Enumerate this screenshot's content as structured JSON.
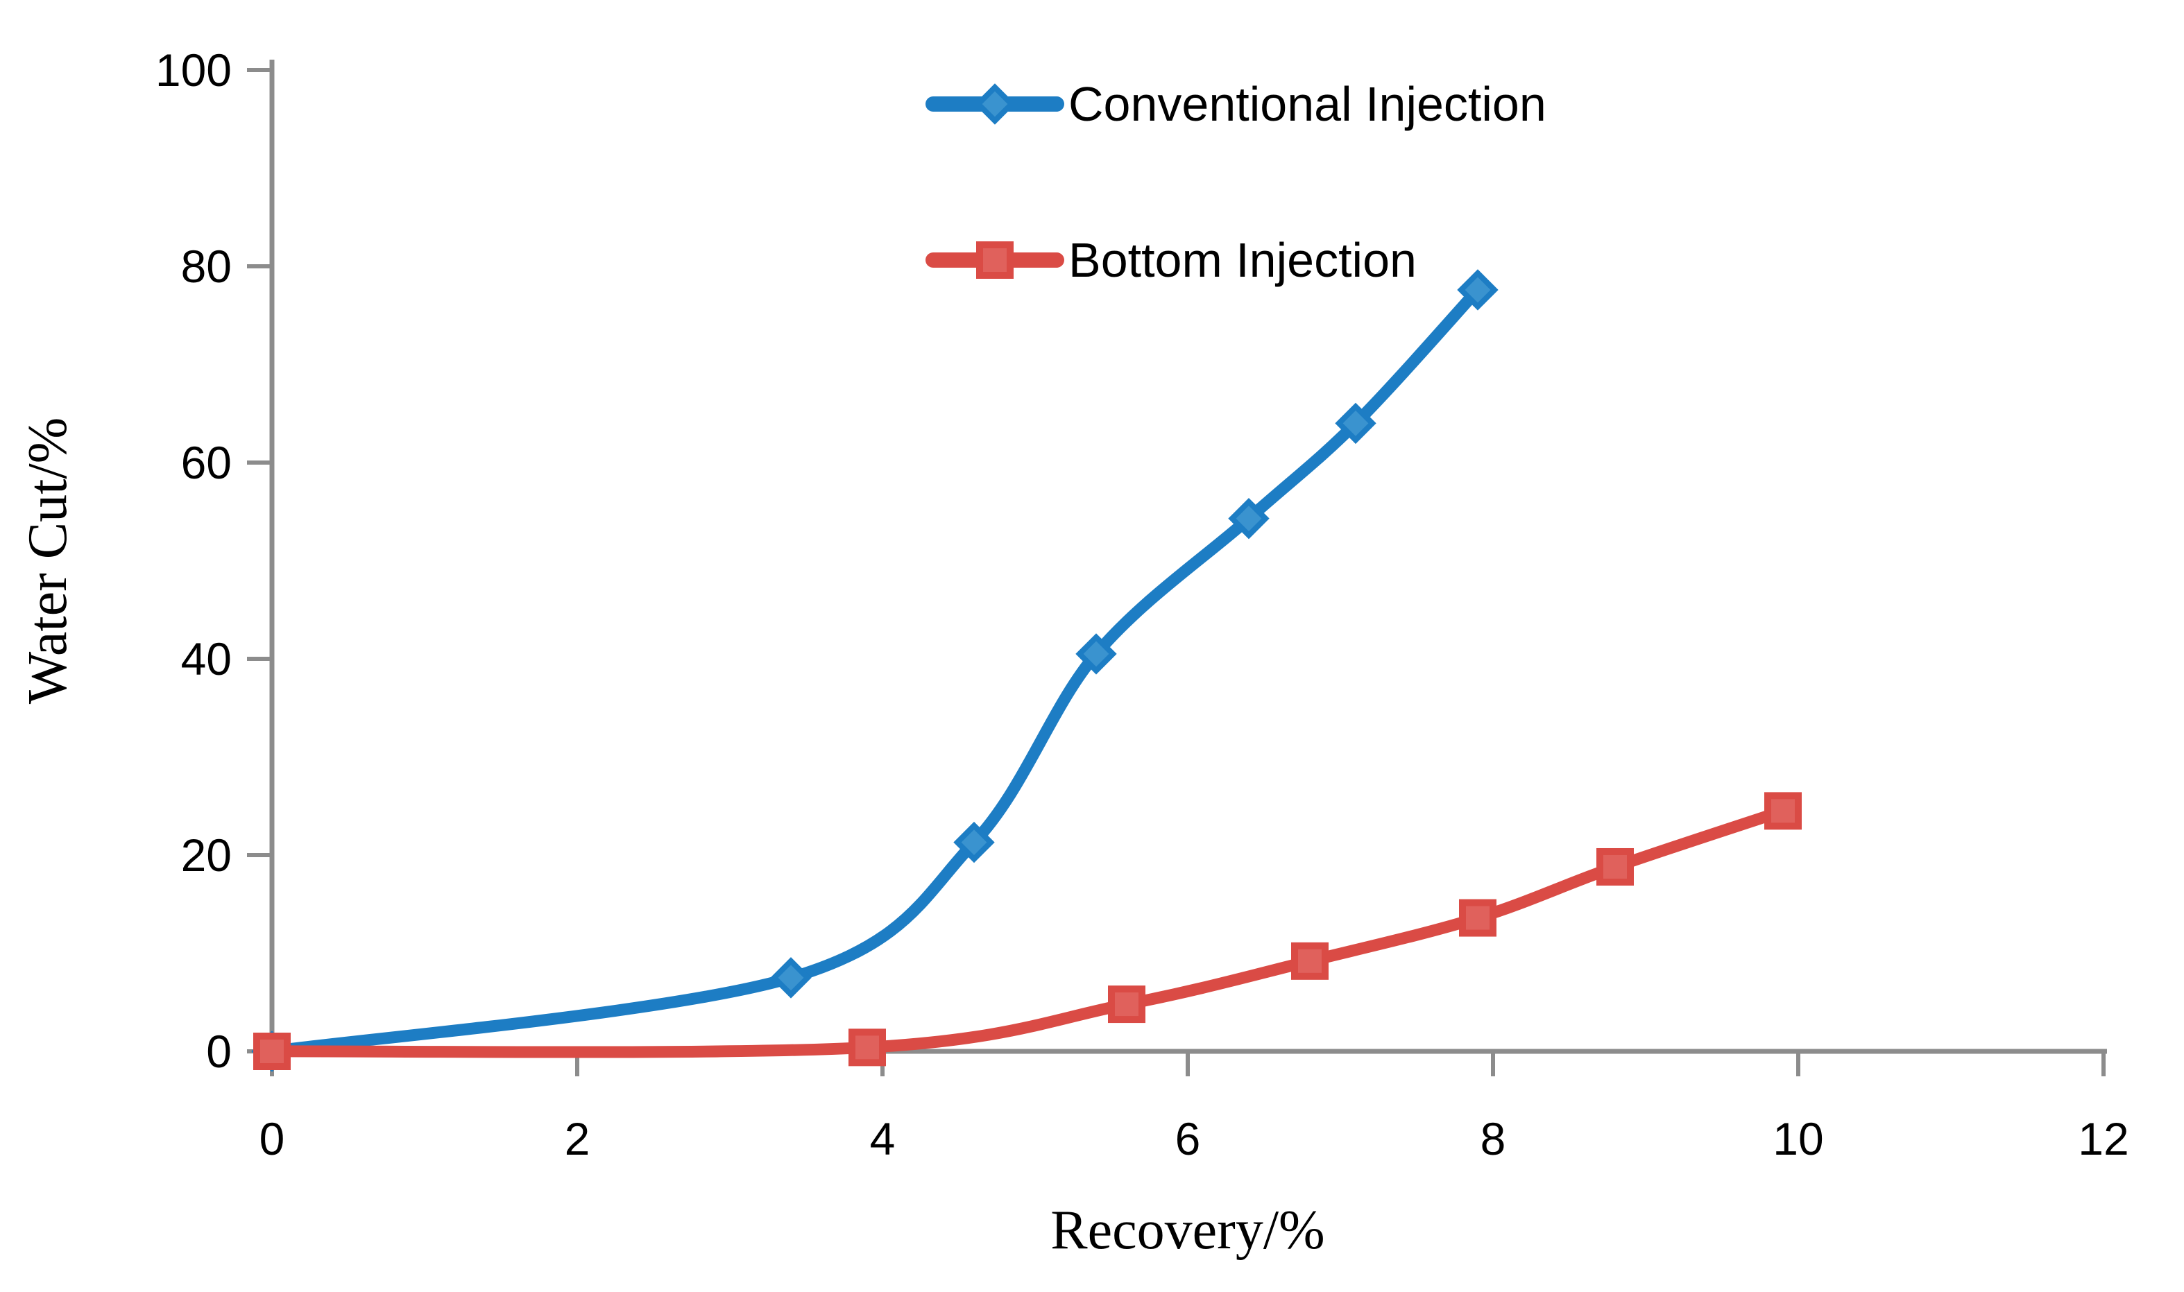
{
  "chart_data": {
    "type": "line",
    "title": "",
    "xlabel": "Recovery/%",
    "ylabel": "Water Cut/%",
    "xlim": [
      0,
      12
    ],
    "ylim": [
      0,
      100
    ],
    "xticks": [
      0,
      2,
      4,
      6,
      8,
      10,
      12
    ],
    "yticks": [
      0,
      20,
      40,
      60,
      80,
      100
    ],
    "grid": false,
    "axis_color": "#8c8c8c",
    "tick_label_color": "#000000",
    "legend": {
      "position": "top-center",
      "entries": [
        "Conventional Injection",
        "Bottom Injection"
      ]
    },
    "series": [
      {
        "name": "Conventional Injection",
        "color": "#1d7dc4",
        "marker": "diamond",
        "marker_inner": "#3a93cf",
        "smooth": true,
        "x": [
          0,
          3.4,
          4.6,
          5.4,
          6.4,
          7.1,
          7.9
        ],
        "y": [
          0,
          7.5,
          21.3,
          40.5,
          54.3,
          64,
          77.6
        ]
      },
      {
        "name": "Bottom Injection",
        "color": "#da4b45",
        "marker": "square",
        "marker_inner": "#e0615c",
        "smooth": true,
        "x": [
          0,
          3.9,
          5.6,
          6.8,
          7.9,
          8.8,
          9.9
        ],
        "y": [
          0,
          0.4,
          4.8,
          9.2,
          13.6,
          18.8,
          24.5
        ]
      }
    ]
  }
}
